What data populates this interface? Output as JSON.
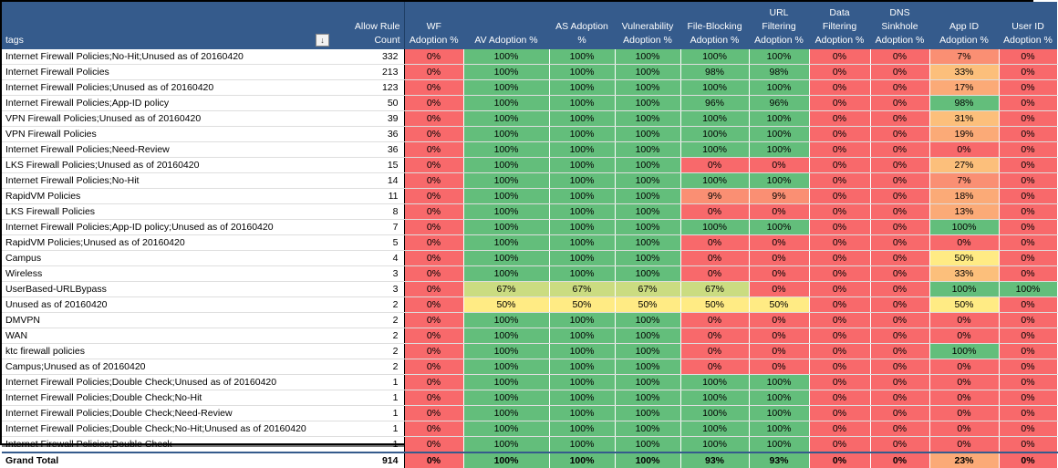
{
  "table": {
    "headers": [
      {
        "key": "tags",
        "label": "tags"
      },
      {
        "key": "count",
        "label": "Allow Rule Count"
      },
      {
        "key": "wf",
        "label": "WF Adoption %"
      },
      {
        "key": "av",
        "label": "AV Adoption %"
      },
      {
        "key": "as",
        "label": "AS Adoption %"
      },
      {
        "key": "vul",
        "label": "Vulnerability Adoption %"
      },
      {
        "key": "fb",
        "label": "File-Blocking Adoption %"
      },
      {
        "key": "url",
        "label": "URL Filtering Adoption %"
      },
      {
        "key": "df",
        "label": "Data Filtering Adoption %"
      },
      {
        "key": "dns",
        "label": "DNS Sinkhole Adoption %"
      },
      {
        "key": "app",
        "label": "App ID Adoption %"
      },
      {
        "key": "uid",
        "label": "User ID Adoption %"
      }
    ],
    "filter_icon": "filter-dropdown-icon",
    "colors": {
      "header_bg": "#355b8c",
      "red": "#f8696b",
      "green": "#63be7b",
      "yellow_green": "#cbdc81",
      "yellow": "#ffeb84",
      "orange": "#fbaa77",
      "orange_light": "#fcbf7b",
      "light_red": "#fa8f73"
    },
    "rows": [
      {
        "tag": "Internet Firewall Policies;No-Hit;Unused as of 20160420",
        "count": "332",
        "values": [
          "0%",
          "100%",
          "100%",
          "100%",
          "100%",
          "100%",
          "0%",
          "0%",
          "7%",
          "0%"
        ]
      },
      {
        "tag": "Internet Firewall Policies",
        "count": "213",
        "values": [
          "0%",
          "100%",
          "100%",
          "100%",
          "98%",
          "98%",
          "0%",
          "0%",
          "33%",
          "0%"
        ]
      },
      {
        "tag": "Internet Firewall Policies;Unused as of 20160420",
        "count": "123",
        "values": [
          "0%",
          "100%",
          "100%",
          "100%",
          "100%",
          "100%",
          "0%",
          "0%",
          "17%",
          "0%"
        ]
      },
      {
        "tag": "Internet Firewall Policies;App-ID policy",
        "count": "50",
        "values": [
          "0%",
          "100%",
          "100%",
          "100%",
          "96%",
          "96%",
          "0%",
          "0%",
          "98%",
          "0%"
        ]
      },
      {
        "tag": "VPN Firewall Policies;Unused as of 20160420",
        "count": "39",
        "values": [
          "0%",
          "100%",
          "100%",
          "100%",
          "100%",
          "100%",
          "0%",
          "0%",
          "31%",
          "0%"
        ]
      },
      {
        "tag": "VPN Firewall Policies",
        "count": "36",
        "values": [
          "0%",
          "100%",
          "100%",
          "100%",
          "100%",
          "100%",
          "0%",
          "0%",
          "19%",
          "0%"
        ]
      },
      {
        "tag": "Internet Firewall Policies;Need-Review",
        "count": "36",
        "values": [
          "0%",
          "100%",
          "100%",
          "100%",
          "100%",
          "100%",
          "0%",
          "0%",
          "0%",
          "0%"
        ]
      },
      {
        "tag": "LKS Firewall Policies;Unused as of 20160420",
        "count": "15",
        "values": [
          "0%",
          "100%",
          "100%",
          "100%",
          "0%",
          "0%",
          "0%",
          "0%",
          "27%",
          "0%"
        ]
      },
      {
        "tag": "Internet Firewall Policies;No-Hit",
        "count": "14",
        "values": [
          "0%",
          "100%",
          "100%",
          "100%",
          "100%",
          "100%",
          "0%",
          "0%",
          "7%",
          "0%"
        ]
      },
      {
        "tag": "RapidVM Policies",
        "count": "11",
        "values": [
          "0%",
          "100%",
          "100%",
          "100%",
          "9%",
          "9%",
          "0%",
          "0%",
          "18%",
          "0%"
        ]
      },
      {
        "tag": "LKS Firewall Policies",
        "count": "8",
        "values": [
          "0%",
          "100%",
          "100%",
          "100%",
          "0%",
          "0%",
          "0%",
          "0%",
          "13%",
          "0%"
        ]
      },
      {
        "tag": "Internet Firewall Policies;App-ID policy;Unused as of 20160420",
        "count": "7",
        "values": [
          "0%",
          "100%",
          "100%",
          "100%",
          "100%",
          "100%",
          "0%",
          "0%",
          "100%",
          "0%"
        ]
      },
      {
        "tag": "RapidVM Policies;Unused as of 20160420",
        "count": "5",
        "values": [
          "0%",
          "100%",
          "100%",
          "100%",
          "0%",
          "0%",
          "0%",
          "0%",
          "0%",
          "0%"
        ]
      },
      {
        "tag": "Campus",
        "count": "4",
        "values": [
          "0%",
          "100%",
          "100%",
          "100%",
          "0%",
          "0%",
          "0%",
          "0%",
          "50%",
          "0%"
        ]
      },
      {
        "tag": "Wireless",
        "count": "3",
        "values": [
          "0%",
          "100%",
          "100%",
          "100%",
          "0%",
          "0%",
          "0%",
          "0%",
          "33%",
          "0%"
        ]
      },
      {
        "tag": "UserBased-URLBypass",
        "count": "3",
        "values": [
          "0%",
          "67%",
          "67%",
          "67%",
          "67%",
          "0%",
          "0%",
          "0%",
          "100%",
          "100%"
        ]
      },
      {
        "tag": "Unused as of 20160420",
        "count": "2",
        "values": [
          "0%",
          "50%",
          "50%",
          "50%",
          "50%",
          "50%",
          "0%",
          "0%",
          "50%",
          "0%"
        ]
      },
      {
        "tag": "DMVPN",
        "count": "2",
        "values": [
          "0%",
          "100%",
          "100%",
          "100%",
          "0%",
          "0%",
          "0%",
          "0%",
          "0%",
          "0%"
        ]
      },
      {
        "tag": "WAN",
        "count": "2",
        "values": [
          "0%",
          "100%",
          "100%",
          "100%",
          "0%",
          "0%",
          "0%",
          "0%",
          "0%",
          "0%"
        ]
      },
      {
        "tag": "ktc firewall policies",
        "count": "2",
        "values": [
          "0%",
          "100%",
          "100%",
          "100%",
          "0%",
          "0%",
          "0%",
          "0%",
          "100%",
          "0%"
        ]
      },
      {
        "tag": "Campus;Unused as of 20160420",
        "count": "2",
        "values": [
          "0%",
          "100%",
          "100%",
          "100%",
          "0%",
          "0%",
          "0%",
          "0%",
          "0%",
          "0%"
        ]
      },
      {
        "tag": "Internet Firewall Policies;Double Check;Unused as of 20160420",
        "count": "1",
        "values": [
          "0%",
          "100%",
          "100%",
          "100%",
          "100%",
          "100%",
          "0%",
          "0%",
          "0%",
          "0%"
        ]
      },
      {
        "tag": "Internet Firewall Policies;Double Check;No-Hit",
        "count": "1",
        "values": [
          "0%",
          "100%",
          "100%",
          "100%",
          "100%",
          "100%",
          "0%",
          "0%",
          "0%",
          "0%"
        ]
      },
      {
        "tag": "Internet Firewall Policies;Double Check;Need-Review",
        "count": "1",
        "values": [
          "0%",
          "100%",
          "100%",
          "100%",
          "100%",
          "100%",
          "0%",
          "0%",
          "0%",
          "0%"
        ]
      },
      {
        "tag": "Internet Firewall Policies;Double Check;No-Hit;Unused as of 20160420",
        "count": "1",
        "values": [
          "0%",
          "100%",
          "100%",
          "100%",
          "100%",
          "100%",
          "0%",
          "0%",
          "0%",
          "0%"
        ]
      },
      {
        "tag": "Internet Firewall Policies;Double Check",
        "count": "1",
        "values": [
          "0%",
          "100%",
          "100%",
          "100%",
          "100%",
          "100%",
          "0%",
          "0%",
          "0%",
          "0%"
        ]
      }
    ],
    "total": {
      "tag": "Grand Total",
      "count": "914",
      "values": [
        "0%",
        "100%",
        "100%",
        "100%",
        "93%",
        "93%",
        "0%",
        "0%",
        "23%",
        "0%"
      ]
    }
  }
}
